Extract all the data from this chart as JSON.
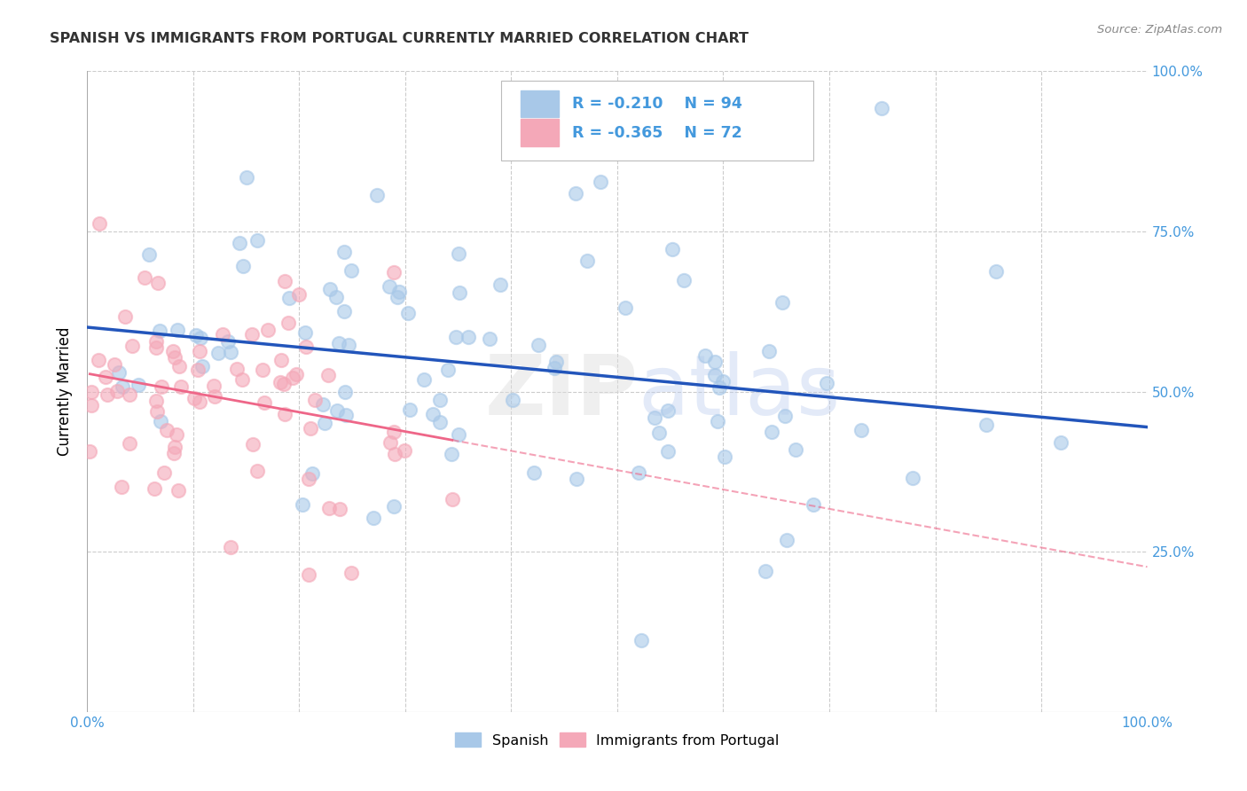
{
  "title": "SPANISH VS IMMIGRANTS FROM PORTUGAL CURRENTLY MARRIED CORRELATION CHART",
  "source": "Source: ZipAtlas.com",
  "ylabel": "Currently Married",
  "watermark": "ZIPatlas",
  "xlim": [
    0.0,
    1.0
  ],
  "ylim": [
    0.0,
    1.0
  ],
  "legend_label1": "Spanish",
  "legend_label2": "Immigrants from Portugal",
  "R1": -0.21,
  "N1": 94,
  "R2": -0.365,
  "N2": 72,
  "color_blue": "#A8C8E8",
  "color_pink": "#F4A8B8",
  "color_blue_line": "#2255BB",
  "color_pink_line": "#EE6688",
  "color_axis_text": "#4499DD",
  "background_color": "#FFFFFF",
  "grid_color": "#CCCCCC"
}
